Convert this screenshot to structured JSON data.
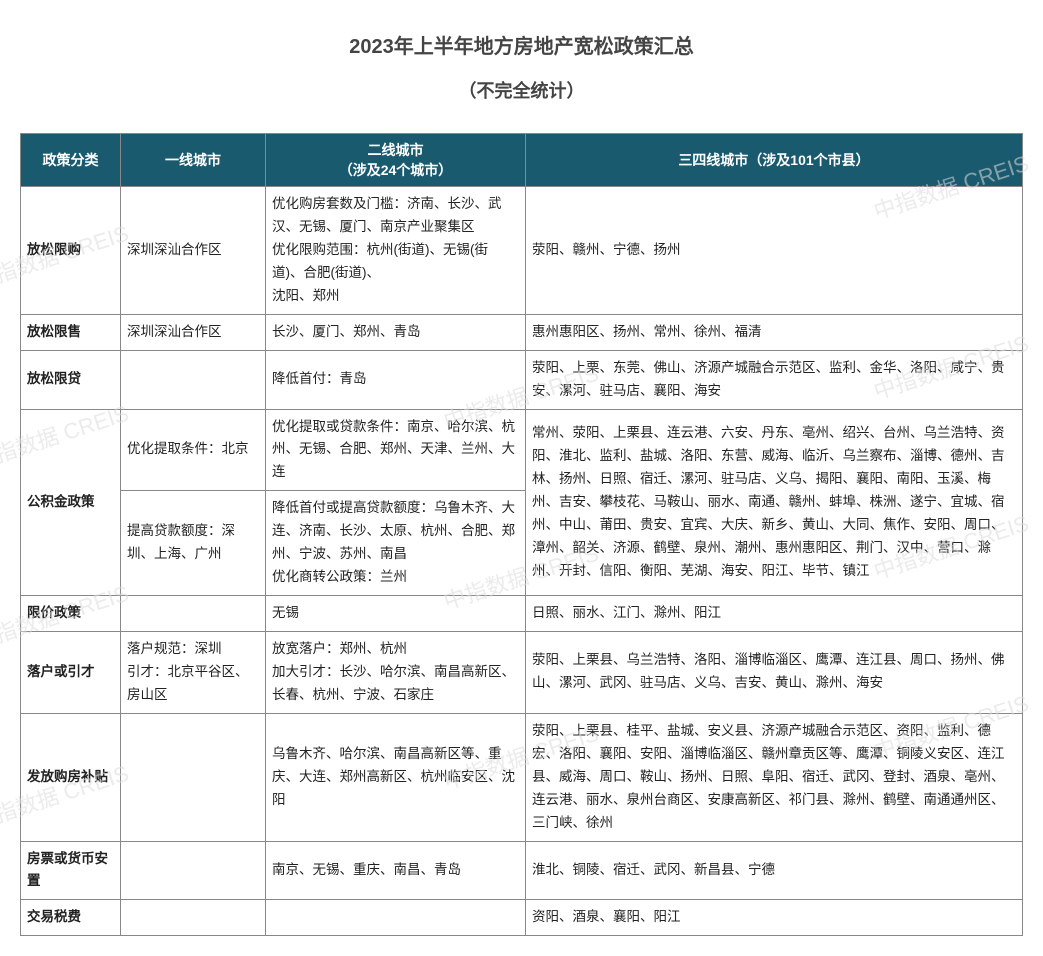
{
  "title": "2023年上半年地方房地产宽松政策汇总",
  "subtitle": "（不完全统计）",
  "watermark_text": "中指数据 CREIS",
  "watermark_color": "#dcdcdc",
  "header_bg": "#1a5a6e",
  "header_fg": "#ffffff",
  "columns": {
    "c1": "政策分类",
    "c2": "一线城市",
    "c3_line1": "二线城市",
    "c3_line2": "（涉及24个城市）",
    "c4": "三四线城市（涉及101个市县）"
  },
  "rows": {
    "r1": {
      "cat": "放松限购",
      "tier1": "深圳深汕合作区",
      "tier2": "优化购房套数及门槛：济南、长沙、武汉、无锡、厦门、南京产业聚集区\n优化限购范围：杭州(街道)、无锡(街道)、合肥(街道)、\n沈阳、郑州",
      "tier34": "荥阳、赣州、宁德、扬州"
    },
    "r2": {
      "cat": "放松限售",
      "tier1": "深圳深汕合作区",
      "tier2": "长沙、厦门、郑州、青岛",
      "tier34": "惠州惠阳区、扬州、常州、徐州、福清"
    },
    "r3": {
      "cat": "放松限贷",
      "tier1": "",
      "tier2": "降低首付：青岛",
      "tier34": "荥阳、上栗、东莞、佛山、济源产城融合示范区、监利、金华、洛阳、咸宁、贵安、漯河、驻马店、襄阳、海安"
    },
    "r4a": {
      "cat": "公积金政策",
      "tier1": "优化提取条件：北京",
      "tier2": "优化提取或贷款条件：南京、哈尔滨、杭州、无锡、合肥、郑州、天津、兰州、大连",
      "tier34": "常州、荥阳、上栗县、连云港、六安、丹东、亳州、绍兴、台州、乌兰浩特、资阳、淮北、监利、盐城、洛阳、东营、威海、临沂、乌兰察布、淄博、德州、吉林、扬州、日照、宿迁、漯河、驻马店、义乌、揭阳、襄阳、南阳、玉溪、梅州、吉安、攀枝花、马鞍山、丽水、南通、赣州、蚌埠、株洲、遂宁、宜城、宿州、中山、莆田、贵安、宜宾、大庆、新乡、黄山、大同、焦作、安阳、周口、漳州、韶关、济源、鹤壁、泉州、潮州、惠州惠阳区、荆门、汉中、营口、滁州、开封、信阳、衡阳、芜湖、海安、阳江、毕节、镇江"
    },
    "r4b": {
      "tier1": "提高贷款额度：深圳、上海、广州",
      "tier2": "降低首付或提高贷款额度：乌鲁木齐、大连、济南、长沙、太原、杭州、合肥、郑州、宁波、苏州、南昌\n优化商转公政策：兰州"
    },
    "r5": {
      "cat": "限价政策",
      "tier1": "",
      "tier2": "无锡",
      "tier34": "日照、丽水、江门、滁州、阳江"
    },
    "r6": {
      "cat": "落户或引才",
      "tier1": "落户规范：深圳\n引才：北京平谷区、房山区",
      "tier2": "放宽落户：郑州、杭州\n加大引才：长沙、哈尔滨、南昌高新区、长春、杭州、宁波、石家庄",
      "tier34": "荥阳、上栗县、乌兰浩特、洛阳、淄博临淄区、鹰潭、连江县、周口、扬州、佛山、漯河、武冈、驻马店、义乌、吉安、黄山、滁州、海安"
    },
    "r7": {
      "cat": "发放购房补贴",
      "tier1": "",
      "tier2": "乌鲁木齐、哈尔滨、南昌高新区等、重庆、大连、郑州高新区、杭州临安区、沈阳",
      "tier34": "荥阳、上栗县、桂平、盐城、安义县、济源产城融合示范区、资阳、监利、德宏、洛阳、襄阳、安阳、淄博临淄区、赣州章贡区等、鹰潭、铜陵义安区、连江县、威海、周口、鞍山、扬州、日照、阜阳、宿迁、武冈、登封、酒泉、亳州、连云港、丽水、泉州台商区、安康高新区、祁门县、滁州、鹤壁、南通通州区、三门峡、徐州"
    },
    "r8": {
      "cat": "房票或货币安置",
      "tier1": "",
      "tier2": "南京、无锡、重庆、南昌、青岛",
      "tier34": "淮北、铜陵、宿迁、武冈、新昌县、宁德"
    },
    "r9": {
      "cat": "交易税费",
      "tier1": "",
      "tier2": "",
      "tier34": "资阳、酒泉、襄阳、阳江"
    }
  }
}
